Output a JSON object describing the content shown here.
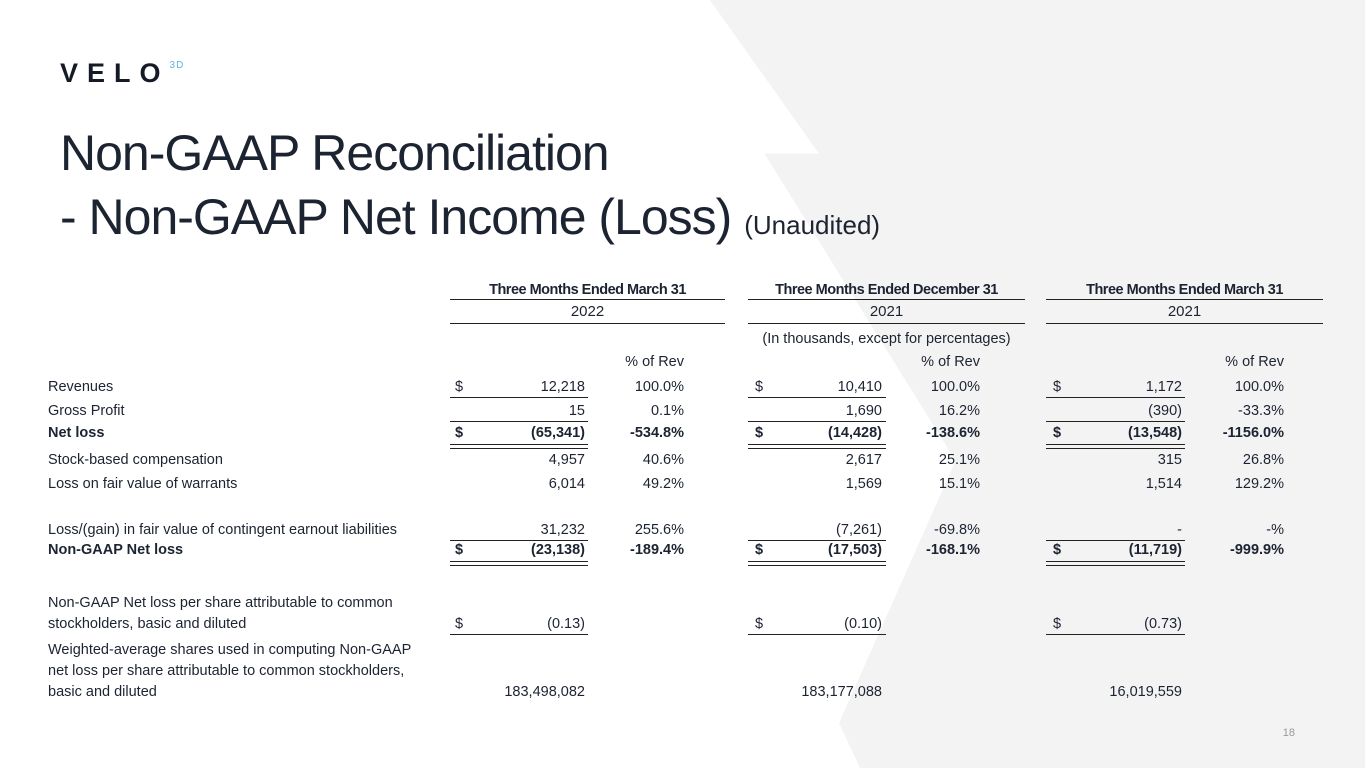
{
  "logo": {
    "text": "VELO",
    "sup": "3D"
  },
  "title": {
    "line1": "Non-GAAP Reconciliation",
    "line2": "- Non-GAAP Net Income (Loss)",
    "note": "(Unaudited)"
  },
  "columns": [
    {
      "period": "Three Months Ended March 31",
      "year": "2022"
    },
    {
      "period": "Three Months Ended December 31",
      "year": "2021"
    },
    {
      "period": "Three Months Ended March 31",
      "year": "2021"
    }
  ],
  "units_note": "(In thousands, except for percentages)",
  "pct_header": "% of Rev",
  "rows": [
    {
      "label": [
        "Revenues"
      ],
      "bold": false,
      "dollar": true,
      "values": [
        "12,218",
        "10,410",
        "1,172"
      ],
      "pcts": [
        "100.0%",
        "100.0%",
        "100.0%"
      ],
      "under": "single"
    },
    {
      "label": [
        "Gross Profit"
      ],
      "bold": false,
      "dollar": false,
      "values": [
        "15",
        "1,690",
        "(390)"
      ],
      "pcts": [
        "0.1%",
        "16.2%",
        "-33.3%"
      ],
      "under": "single"
    },
    {
      "label": [
        "Net loss"
      ],
      "bold": true,
      "dollar": true,
      "values": [
        "(65,341)",
        "(14,428)",
        "(13,548)"
      ],
      "pcts": [
        "-534.8%",
        "-138.6%",
        "-1156.0%"
      ],
      "under": "double"
    },
    {
      "label": [
        "Stock-based compensation"
      ],
      "bold": false,
      "dollar": false,
      "values": [
        "4,957",
        "2,617",
        "315"
      ],
      "pcts": [
        "40.6%",
        "25.1%",
        "26.8%"
      ]
    },
    {
      "label": [
        "Loss on fair value of warrants"
      ],
      "bold": false,
      "dollar": false,
      "values": [
        "6,014",
        "1,569",
        "1,514"
      ],
      "pcts": [
        "49.2%",
        "15.1%",
        "129.2%"
      ]
    },
    {
      "label": [
        "Loss/(gain) in fair value of contingent earnout liabilities"
      ],
      "bold": false,
      "dollar": false,
      "values": [
        "31,232",
        "(7,261)",
        "-"
      ],
      "pcts": [
        "255.6%",
        "-69.8%",
        "-%"
      ],
      "under": "single"
    },
    {
      "label": [
        "Non-GAAP Net loss"
      ],
      "bold": true,
      "dollar": true,
      "values": [
        "(23,138)",
        "(17,503)",
        "(11,719)"
      ],
      "pcts": [
        "-189.4%",
        "-168.1%",
        "-999.9%"
      ],
      "under": "double"
    },
    {
      "label": [
        "Non-GAAP Net loss per share attributable to common",
        "stockholders, basic and diluted"
      ],
      "bold": false,
      "dollar": true,
      "values": [
        "(0.13)",
        "(0.10)",
        "(0.73)"
      ],
      "pcts": [
        "",
        "",
        ""
      ],
      "under": "single"
    },
    {
      "label": [
        "Weighted-average shares used in computing Non-GAAP",
        "net loss per share attributable to common stockholders,",
        "basic and diluted"
      ],
      "bold": false,
      "dollar": false,
      "values": [
        "183,498,082",
        "183,177,088",
        "16,019,559"
      ],
      "pcts": [
        "",
        "",
        ""
      ]
    }
  ],
  "page_number": "18"
}
